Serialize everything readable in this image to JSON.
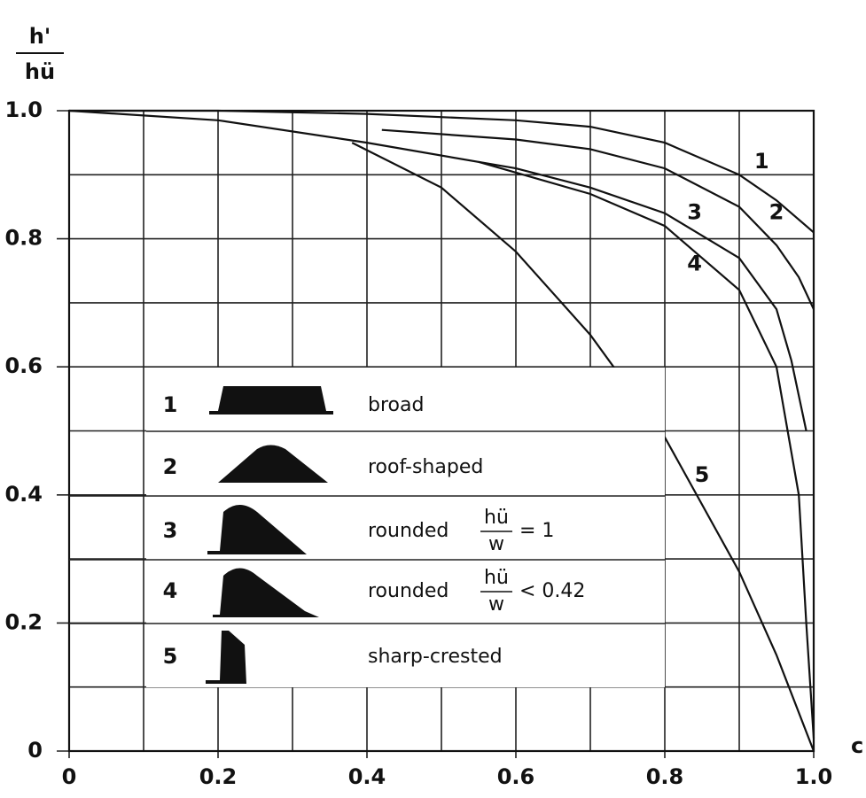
{
  "chart_data": {
    "type": "line",
    "ylabel": {
      "numerator": "h'",
      "denominator": "hü"
    },
    "xlabel": "c",
    "xlim": [
      0,
      1
    ],
    "ylim": [
      0,
      1
    ],
    "xticks": [
      0,
      0.2,
      0.4,
      0.6,
      0.8,
      {
        "value": 1,
        "label": "1.0"
      }
    ],
    "yticks": [
      0,
      0.2,
      0.4,
      0.6,
      0.8,
      {
        "value": 1,
        "label": "1.0"
      }
    ],
    "x_minor_ticks": [
      0.1,
      0.3,
      0.5,
      0.7,
      0.9
    ],
    "y_minor_ticks": [
      0.1,
      0.3,
      0.5,
      0.7,
      0.9
    ],
    "grid": true,
    "series": [
      {
        "name": "1",
        "description": "broad",
        "color": "#111111",
        "x": [
          0,
          0.2,
          0.4,
          0.6,
          0.7,
          0.8,
          0.9,
          0.95,
          1.0
        ],
        "values": [
          1.0,
          1.0,
          0.995,
          0.985,
          0.975,
          0.95,
          0.9,
          0.86,
          0.81
        ]
      },
      {
        "name": "2",
        "description": "roof-shaped",
        "color": "#111111",
        "x": [
          0.42,
          0.6,
          0.7,
          0.8,
          0.9,
          0.95,
          0.98,
          1.0
        ],
        "values": [
          0.97,
          0.955,
          0.94,
          0.91,
          0.85,
          0.79,
          0.74,
          0.69
        ]
      },
      {
        "name": "3",
        "description": "rounded",
        "ratio_numerator": "hü",
        "ratio_denominator": "w",
        "ratio_relation": "= 1",
        "color": "#111111",
        "x": [
          0,
          0.2,
          0.4,
          0.6,
          0.7,
          0.8,
          0.9,
          0.95,
          0.97,
          0.99
        ],
        "values": [
          1.0,
          0.985,
          0.95,
          0.91,
          0.88,
          0.84,
          0.77,
          0.69,
          0.61,
          0.5
        ]
      },
      {
        "name": "4",
        "description": "rounded",
        "ratio_numerator": "hü",
        "ratio_denominator": "w",
        "ratio_relation": "< 0.42",
        "color": "#111111",
        "x": [
          0.55,
          0.7,
          0.8,
          0.9,
          0.95,
          0.98,
          0.99,
          1.0
        ],
        "values": [
          0.92,
          0.87,
          0.82,
          0.72,
          0.6,
          0.4,
          0.2,
          0.02
        ]
      },
      {
        "name": "5",
        "description": "sharp-crested",
        "color": "#111111",
        "x": [
          0.38,
          0.5,
          0.6,
          0.7,
          0.8,
          0.9,
          0.95,
          1.0
        ],
        "values": [
          0.95,
          0.88,
          0.78,
          0.65,
          0.49,
          0.28,
          0.15,
          0.0
        ]
      }
    ]
  }
}
